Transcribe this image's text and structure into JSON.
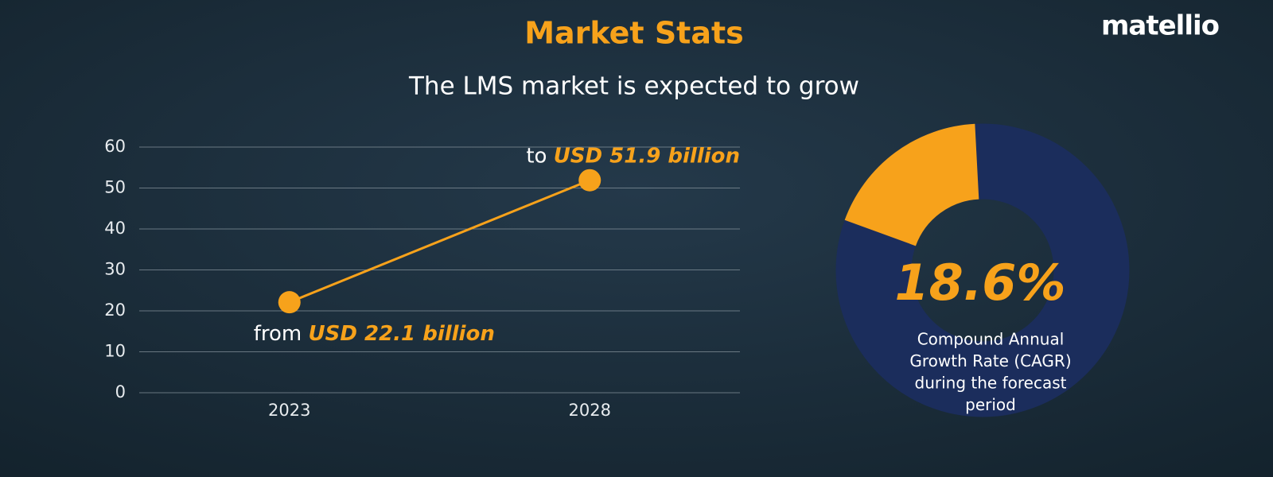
{
  "header": {
    "title": "Market Stats",
    "subtitle": "The LMS market is expected to grow",
    "logo": "matellio"
  },
  "chart_data": [
    {
      "type": "line",
      "categories": [
        "2023",
        "2028"
      ],
      "values": [
        22.1,
        51.9
      ],
      "value_labels": [
        "USD 22.1 billion",
        "USD 51.9 billion"
      ],
      "label_prefixes": [
        "from",
        "to"
      ],
      "color": "#f7a21b",
      "ylim": [
        0,
        60
      ],
      "yticks": [
        0,
        10,
        20,
        30,
        40,
        50,
        60
      ],
      "grid": true
    },
    {
      "type": "donut",
      "values": [
        18.6
      ],
      "value_labels": [
        "18.6%"
      ],
      "color": "#f7a21b",
      "ring_color": "#1b2d5c",
      "description": [
        "Compound Annual",
        "Growth Rate (CAGR)",
        "during the forecast",
        "period"
      ]
    }
  ]
}
